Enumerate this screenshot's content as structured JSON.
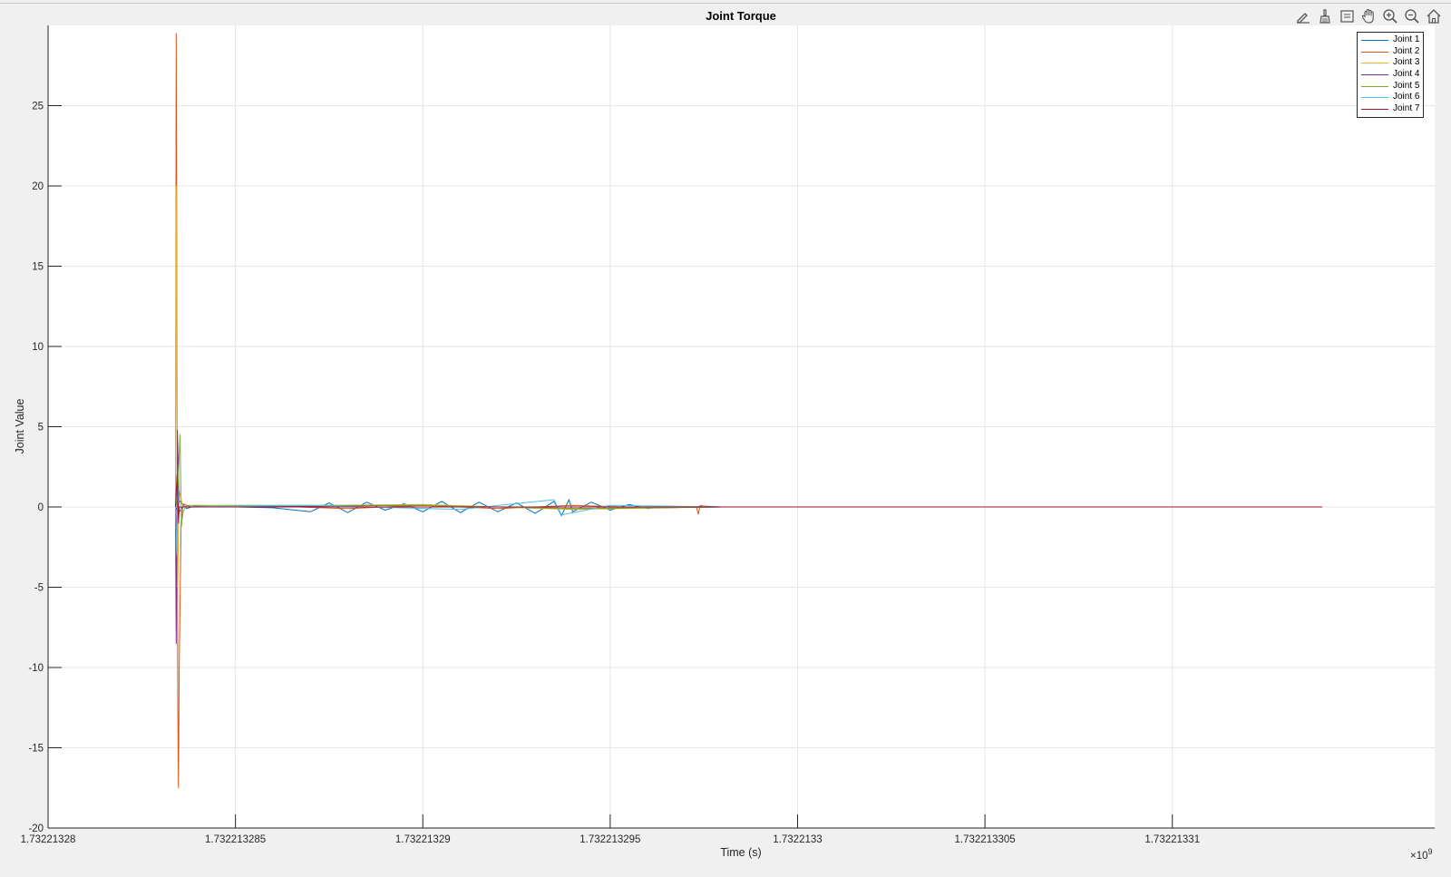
{
  "toolbar": {
    "buttons": [
      {
        "name": "edit-plot-icon"
      },
      {
        "name": "brush-icon"
      },
      {
        "name": "data-tips-icon"
      },
      {
        "name": "pan-icon"
      },
      {
        "name": "zoom-in-icon"
      },
      {
        "name": "zoom-out-icon"
      },
      {
        "name": "home-icon"
      }
    ]
  },
  "chart_data": {
    "type": "line",
    "title": "Joint Torque",
    "xlabel": "Time (s)",
    "ylabel": "Joint Value",
    "x_exponent_label": "×10",
    "x_exponent_power": "9",
    "xlim": [
      1.73221328,
      1.732213317
    ],
    "ylim": [
      -20,
      30
    ],
    "x_ticks": [
      1.73221328,
      1.732213285,
      1.73221329,
      1.732213295,
      1.7322133,
      1.732213305,
      1.73221331
    ],
    "x_tick_labels": [
      "1.73221328",
      "1.732213285",
      "1.73221329",
      "1.732213295",
      "1.7322133",
      "1.732213305",
      "1.73221331"
    ],
    "y_ticks": [
      -20,
      -15,
      -10,
      -5,
      0,
      5,
      10,
      15,
      20,
      25
    ],
    "y_tick_labels": [
      "-20",
      "-15",
      "-10",
      "-5",
      "0",
      "5",
      "10",
      "15",
      "20",
      "25"
    ],
    "grid": true,
    "legend_position": "top-right",
    "series": [
      {
        "name": "Joint 1",
        "color": "#0072BD",
        "points": [
          [
            1.7322132834,
            0
          ],
          [
            1.73221328345,
            -0.3
          ],
          [
            1.7322132835,
            0.4
          ],
          [
            1.7322132837,
            -0.1
          ],
          [
            1.7322132839,
            0.05
          ],
          [
            1.732213286,
            -0.05
          ],
          [
            1.732213287,
            -0.3
          ],
          [
            1.7322132875,
            0.25
          ],
          [
            1.732213288,
            -0.35
          ],
          [
            1.7322132885,
            0.3
          ],
          [
            1.732213289,
            -0.2
          ],
          [
            1.7322132895,
            0.2
          ],
          [
            1.73221329,
            -0.3
          ],
          [
            1.7322132905,
            0.35
          ],
          [
            1.732213291,
            -0.35
          ],
          [
            1.7322132915,
            0.3
          ],
          [
            1.732213292,
            -0.3
          ],
          [
            1.7322132925,
            0.25
          ],
          [
            1.732213293,
            -0.4
          ],
          [
            1.7322132935,
            0.35
          ],
          [
            1.7322132937,
            -0.55
          ],
          [
            1.7322132939,
            0.45
          ],
          [
            1.732213294,
            -0.3
          ],
          [
            1.7322132945,
            0.3
          ],
          [
            1.732213295,
            -0.2
          ],
          [
            1.7322132955,
            0.15
          ],
          [
            1.732213296,
            -0.1
          ],
          [
            1.7322132965,
            0.05
          ],
          [
            1.7322132972,
            0
          ],
          [
            1.7322132975,
            0.05
          ],
          [
            1.732213298,
            0
          ],
          [
            1.7322133,
            0
          ],
          [
            1.73221331,
            0
          ],
          [
            1.732213314,
            0
          ]
        ]
      },
      {
        "name": "Joint 2",
        "color": "#D95319",
        "points": [
          [
            1.7322132834,
            0
          ],
          [
            1.73221328342,
            29.5
          ],
          [
            1.73221328344,
            10
          ],
          [
            1.73221328346,
            -12
          ],
          [
            1.73221328348,
            -17.5
          ],
          [
            1.7322132835,
            -10
          ],
          [
            1.73221328355,
            -1
          ],
          [
            1.7322132836,
            0.2
          ],
          [
            1.7322132838,
            0
          ],
          [
            1.732213286,
            0.05
          ],
          [
            1.732213288,
            -0.1
          ],
          [
            1.73221329,
            0.1
          ],
          [
            1.732213292,
            -0.1
          ],
          [
            1.732213294,
            0.1
          ],
          [
            1.732213296,
            -0.05
          ],
          [
            1.7322132973,
            0
          ],
          [
            1.73221329735,
            -0.45
          ],
          [
            1.7322132974,
            0.1
          ],
          [
            1.7322132976,
            0
          ],
          [
            1.732213298,
            0
          ]
        ]
      },
      {
        "name": "Joint 3",
        "color": "#EDB120",
        "points": [
          [
            1.7322132834,
            0
          ],
          [
            1.73221328342,
            20
          ],
          [
            1.73221328346,
            -5
          ],
          [
            1.7322132835,
            1
          ],
          [
            1.7322132836,
            0
          ],
          [
            1.73221329,
            0.15
          ],
          [
            1.732213294,
            -0.15
          ],
          [
            1.732213298,
            0
          ]
        ]
      },
      {
        "name": "Joint 4",
        "color": "#7E2F8E",
        "points": [
          [
            1.7322132834,
            0
          ],
          [
            1.73221328342,
            -8.5
          ],
          [
            1.73221328345,
            4.8
          ],
          [
            1.73221328348,
            2
          ],
          [
            1.7322132835,
            -0.3
          ],
          [
            1.7322132836,
            0
          ],
          [
            1.73221329,
            0.1
          ],
          [
            1.732213294,
            -0.1
          ],
          [
            1.732213298,
            0
          ]
        ]
      },
      {
        "name": "Joint 5",
        "color": "#77AC30",
        "points": [
          [
            1.7322132834,
            0
          ],
          [
            1.73221328346,
            0.8
          ],
          [
            1.73221328352,
            4.5
          ],
          [
            1.73221328356,
            -1.2
          ],
          [
            1.7322132836,
            -0.3
          ],
          [
            1.7322132837,
            0.1
          ],
          [
            1.73221329,
            0.1
          ],
          [
            1.732213294,
            -0.1
          ],
          [
            1.732213298,
            0
          ]
        ]
      },
      {
        "name": "Joint 6",
        "color": "#4DBEEE",
        "points": [
          [
            1.7322132834,
            0
          ],
          [
            1.73221328344,
            -3
          ],
          [
            1.73221328346,
            1.2
          ],
          [
            1.7322132835,
            0
          ],
          [
            1.732213287,
            0.1
          ],
          [
            1.732213291,
            -0.15
          ],
          [
            1.7322132935,
            0.45
          ],
          [
            1.7322132937,
            -0.5
          ],
          [
            1.732213295,
            0.1
          ],
          [
            1.732213298,
            0
          ]
        ]
      },
      {
        "name": "Joint 7",
        "color": "#A2142F",
        "points": [
          [
            1.7322132834,
            0
          ],
          [
            1.73221328344,
            2
          ],
          [
            1.73221328348,
            -1
          ],
          [
            1.7322132835,
            0
          ],
          [
            1.7322133,
            0
          ],
          [
            1.73221331,
            0
          ],
          [
            1.732213314,
            0
          ]
        ]
      }
    ]
  }
}
